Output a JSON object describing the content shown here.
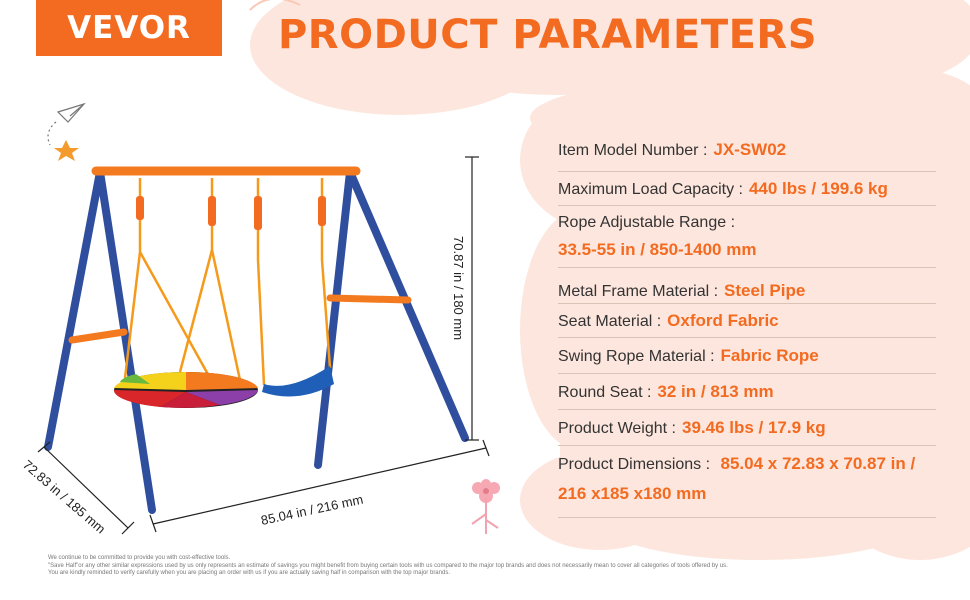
{
  "brand": {
    "name": "VEVOR"
  },
  "title": "PRODUCT PARAMETERS",
  "params": [
    {
      "label": "Item Model Number :",
      "value": "JX-SW02"
    },
    {
      "label": "Maximum Load Capacity :",
      "value": "440 lbs / 199.6 kg"
    },
    {
      "label": "Rope Adjustable Range :",
      "value": "33.5-55 in / 850-1400 mm"
    },
    {
      "label": "Metal Frame Material :",
      "value": "Steel Pipe"
    },
    {
      "label": "Seat Material :",
      "value": "Oxford Fabric"
    },
    {
      "label": "Swing Rope Material :",
      "value": "Fabric Rope"
    },
    {
      "label": "Round Seat :",
      "value": "32 in / 813 mm"
    },
    {
      "label": "Product Weight :",
      "value": "39.46 lbs / 17.9 kg"
    },
    {
      "label": "Product Dimensions :",
      "value": "85.04 x 72.83 x 70.87 in / 216 x185 x180 mm"
    }
  ],
  "dimensions": {
    "height": "70.87 in / 180 mm",
    "width": "85.04 in / 216 mm",
    "depth": "72.83 in / 185 mm"
  },
  "footnote": {
    "line1": "We continue to be committed to provide you with cost-effective tools.",
    "line2": "\"Save Half\"or any other similar expressions used by us only represents an estimate of savings you might benefit from buying certain tools with us compared to the major top brands and does not necessarily mean to cover all categories of tools offered by us.",
    "line3": "You are kindly reminded to verify carefully when you are placing an order with us if you are actually saving half in comparison with the top major brands."
  },
  "colors": {
    "accent": "#f36b21",
    "cloud": "#fde5dc",
    "frame_blue": "#2f4f9e"
  }
}
